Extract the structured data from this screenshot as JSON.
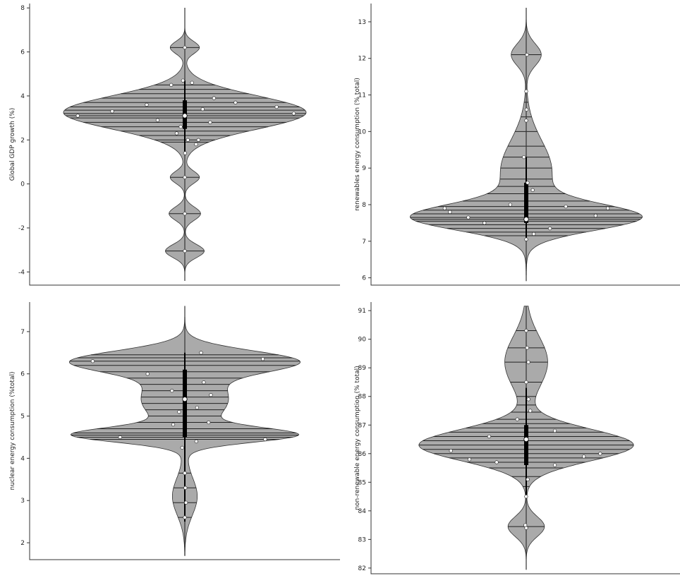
{
  "chart_data": [
    {
      "type": "violin",
      "ylabel": "Global GDP growth (%)",
      "ylim": [
        -4.6,
        8.2
      ],
      "yticks": [
        -4,
        -2,
        0,
        2,
        4,
        6,
        8
      ],
      "whisker": [
        1.4,
        4.7
      ],
      "box": [
        2.5,
        3.8
      ],
      "median": 3.1,
      "bulges": [
        {
          "center": 3.25,
          "width": 1.0,
          "sigma": 0.75
        },
        {
          "center": 6.2,
          "width": 0.12,
          "sigma": 0.28
        },
        {
          "center": 0.3,
          "width": 0.12,
          "sigma": 0.28
        },
        {
          "center": -1.35,
          "width": 0.13,
          "sigma": 0.3
        },
        {
          "center": -3.05,
          "width": 0.16,
          "sigma": 0.3
        }
      ],
      "lines": [
        -3.05,
        -1.35,
        0.3,
        1.9,
        2.0,
        2.2,
        2.4,
        2.6,
        2.8,
        3.0,
        3.1,
        3.2,
        3.35,
        3.5,
        3.7,
        3.9,
        4.1,
        4.3,
        4.5,
        6.2
      ],
      "points": [
        [
          0.0,
          3.1
        ],
        [
          -0.6,
          3.3
        ],
        [
          -0.9,
          3.1
        ],
        [
          -0.45,
          4.5
        ],
        [
          0.3,
          4.6
        ],
        [
          -0.35,
          3.6
        ],
        [
          0.5,
          3.7
        ],
        [
          0.8,
          3.5
        ],
        [
          -0.15,
          2.3
        ],
        [
          0.1,
          2.0
        ],
        [
          0.25,
          2.8
        ],
        [
          -0.25,
          2.9
        ],
        [
          0.15,
          3.4
        ],
        [
          0.45,
          2.0
        ],
        [
          0.6,
          1.8
        ],
        [
          -0.1,
          4.7
        ],
        [
          0.9,
          3.2
        ],
        [
          0.0,
          6.2
        ],
        [
          0.0,
          0.3
        ],
        [
          0.0,
          -1.35
        ],
        [
          0.0,
          -3.05
        ],
        [
          0.05,
          1.4
        ],
        [
          -0.05,
          2.6
        ],
        [
          0.35,
          3.9
        ]
      ]
    },
    {
      "type": "violin",
      "ylabel": "renewables energy consumption (% total)",
      "ylim": [
        5.8,
        13.5
      ],
      "yticks": [
        6,
        7,
        8,
        9,
        10,
        11,
        12,
        13
      ],
      "whisker": [
        7.0,
        9.3
      ],
      "box": [
        7.5,
        8.6
      ],
      "median": 7.6,
      "bulges": [
        {
          "center": 7.65,
          "width": 1.0,
          "sigma": 0.35
        },
        {
          "center": 8.9,
          "width": 0.24,
          "sigma": 0.85
        },
        {
          "center": 12.1,
          "width": 0.14,
          "sigma": 0.3
        }
      ],
      "lines": [
        7.15,
        7.25,
        7.35,
        7.45,
        7.55,
        7.6,
        7.65,
        7.75,
        7.85,
        7.95,
        8.1,
        8.3,
        8.5,
        8.7,
        9.0,
        9.3,
        9.6,
        10.0,
        10.4,
        10.8,
        11.1,
        12.1
      ],
      "points": [
        [
          0.0,
          7.6
        ],
        [
          -0.7,
          7.8
        ],
        [
          0.6,
          7.7
        ],
        [
          -0.4,
          7.5
        ],
        [
          0.3,
          7.35
        ],
        [
          0.85,
          7.9
        ],
        [
          -0.85,
          7.9
        ],
        [
          0.15,
          7.2
        ],
        [
          -0.2,
          8.0
        ],
        [
          0.05,
          8.6
        ],
        [
          -0.1,
          9.3
        ],
        [
          0.0,
          10.3
        ],
        [
          0.1,
          10.6
        ],
        [
          0.0,
          11.1
        ],
        [
          0.05,
          12.1
        ],
        [
          0.0,
          7.05
        ],
        [
          0.45,
          7.95
        ],
        [
          -0.5,
          7.65
        ],
        [
          0.2,
          8.4
        ]
      ]
    },
    {
      "type": "violin",
      "ylabel": "nuclear energy consumption (%total)",
      "ylim": [
        1.6,
        7.7
      ],
      "yticks": [
        2,
        3,
        4,
        5,
        6,
        7
      ],
      "whisker": [
        2.5,
        6.5
      ],
      "box": [
        4.5,
        6.1
      ],
      "median": 5.4,
      "bulges": [
        {
          "center": 6.3,
          "width": 1.0,
          "sigma": 0.25
        },
        {
          "center": 4.55,
          "width": 0.97,
          "sigma": 0.17
        },
        {
          "center": 5.4,
          "width": 0.42,
          "sigma": 0.55
        },
        {
          "center": 3.1,
          "width": 0.12,
          "sigma": 0.45
        }
      ],
      "lines": [
        2.6,
        2.95,
        3.3,
        3.65,
        4.45,
        4.5,
        4.55,
        4.6,
        4.7,
        4.85,
        5.0,
        5.15,
        5.3,
        5.45,
        5.6,
        5.75,
        5.9,
        6.05,
        6.2,
        6.3,
        6.38,
        6.45
      ],
      "points": [
        [
          0.0,
          5.4
        ],
        [
          -0.8,
          6.3
        ],
        [
          0.7,
          6.35
        ],
        [
          -0.5,
          6.0
        ],
        [
          0.4,
          5.8
        ],
        [
          -0.3,
          5.6
        ],
        [
          0.3,
          5.2
        ],
        [
          -0.2,
          4.8
        ],
        [
          0.5,
          4.85
        ],
        [
          -0.6,
          4.5
        ],
        [
          0.85,
          4.45
        ],
        [
          0.15,
          4.4
        ],
        [
          -0.1,
          4.25
        ],
        [
          0.0,
          3.65
        ],
        [
          0.05,
          3.3
        ],
        [
          0.1,
          2.95
        ],
        [
          0.0,
          2.6
        ],
        [
          0.6,
          5.5
        ],
        [
          -0.15,
          5.1
        ],
        [
          0.2,
          6.5
        ]
      ]
    },
    {
      "type": "violin",
      "ylabel": "non-renewable energy consumption (% total)",
      "ylim": [
        81.8,
        91.3
      ],
      "yticks": [
        82,
        83,
        84,
        85,
        86,
        87,
        88,
        89,
        90,
        91
      ],
      "whisker": [
        84.5,
        88.3
      ],
      "box": [
        85.6,
        87.0
      ],
      "median": 86.5,
      "bulges": [
        {
          "center": 86.3,
          "width": 1.0,
          "sigma": 0.55
        },
        {
          "center": 89.2,
          "width": 0.2,
          "sigma": 0.9
        },
        {
          "center": 83.45,
          "width": 0.17,
          "sigma": 0.35
        }
      ],
      "lines": [
        83.45,
        84.45,
        84.85,
        85.2,
        85.5,
        85.7,
        85.85,
        86.0,
        86.15,
        86.3,
        86.45,
        86.6,
        86.75,
        86.9,
        87.05,
        87.2,
        87.45,
        87.7,
        88.0,
        88.5,
        89.2,
        89.7,
        90.3
      ],
      "points": [
        [
          0.0,
          86.5
        ],
        [
          -0.75,
          86.1
        ],
        [
          0.7,
          85.9
        ],
        [
          -0.5,
          85.7
        ],
        [
          0.4,
          86.8
        ],
        [
          -0.3,
          87.2
        ],
        [
          0.3,
          87.5
        ],
        [
          0.6,
          85.6
        ],
        [
          -0.8,
          85.8
        ],
        [
          0.15,
          85.1
        ],
        [
          -0.1,
          84.5
        ],
        [
          0.0,
          88.5
        ],
        [
          0.1,
          89.2
        ],
        [
          0.05,
          89.7
        ],
        [
          0.0,
          90.3
        ],
        [
          -0.05,
          83.5
        ],
        [
          0.0,
          83.4
        ],
        [
          0.8,
          86.0
        ],
        [
          -0.4,
          86.6
        ],
        [
          0.25,
          87.9
        ]
      ]
    }
  ]
}
